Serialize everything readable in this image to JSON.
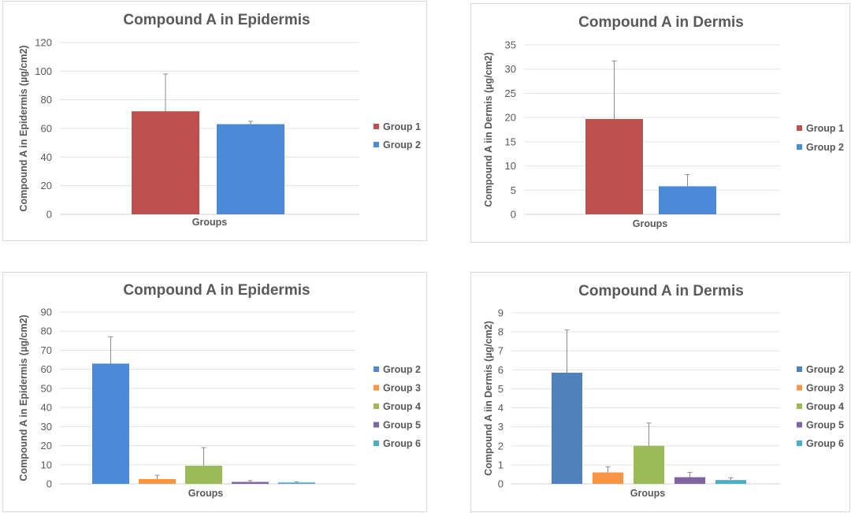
{
  "chart_data": [
    {
      "type": "bar",
      "title": "Compound A in Epidermis",
      "xlabel": "Groups",
      "ylabel": "Compound A  in Epidermis (µg/cm2)",
      "ylim": [
        0,
        120
      ],
      "yticks": [
        0,
        20,
        40,
        60,
        80,
        100,
        120
      ],
      "legend_position": "right",
      "series": [
        {
          "name": "Group 1",
          "value": 72,
          "error": 26,
          "color": "#c0504d"
        },
        {
          "name": "Group 2",
          "value": 63,
          "error": 2,
          "color": "#4a8ad8"
        }
      ]
    },
    {
      "type": "bar",
      "title": "Compound A in Dermis",
      "xlabel": "Groups",
      "ylabel": "Compound A  iin Dermis (µg/cm2)",
      "ylim": [
        0,
        35
      ],
      "yticks": [
        0,
        5,
        10,
        15,
        20,
        25,
        30,
        35
      ],
      "legend_position": "right",
      "series": [
        {
          "name": "Group 1",
          "value": 19.7,
          "error": 12,
          "color": "#c0504d"
        },
        {
          "name": "Group 2",
          "value": 5.8,
          "error": 2.4,
          "color": "#4a8ad8"
        }
      ]
    },
    {
      "type": "bar",
      "title": "Compound A in Epidermis",
      "xlabel": "Groups",
      "ylabel": "Compound A  in Epidermis (µg/cm2)",
      "ylim": [
        0,
        90
      ],
      "yticks": [
        0,
        10,
        20,
        30,
        40,
        50,
        60,
        70,
        80,
        90
      ],
      "legend_position": "right",
      "series": [
        {
          "name": "Group 2",
          "value": 63,
          "error": 14,
          "color": "#4a8ad8"
        },
        {
          "name": "Group 3",
          "value": 2.5,
          "error": 2,
          "color": "#f79646"
        },
        {
          "name": "Group 4",
          "value": 9.5,
          "error": 9.5,
          "color": "#9bbb59"
        },
        {
          "name": "Group 5",
          "value": 1,
          "error": 0.7,
          "color": "#8064a2"
        },
        {
          "name": "Group 6",
          "value": 0.7,
          "error": 0.4,
          "color": "#4bacc6"
        }
      ]
    },
    {
      "type": "bar",
      "title": "Compound A in Dermis",
      "xlabel": "Groups",
      "ylabel": "Compound A  iin Dermis (µg/cm2)",
      "ylim": [
        0,
        9
      ],
      "yticks": [
        0,
        1,
        2,
        3,
        4,
        5,
        6,
        7,
        8,
        9
      ],
      "legend_position": "right",
      "series": [
        {
          "name": "Group 2",
          "value": 5.85,
          "error": 2.25,
          "color": "#4f81bd"
        },
        {
          "name": "Group 3",
          "value": 0.6,
          "error": 0.3,
          "color": "#f79646"
        },
        {
          "name": "Group 4",
          "value": 2.0,
          "error": 1.2,
          "color": "#9bbb59"
        },
        {
          "name": "Group 5",
          "value": 0.35,
          "error": 0.25,
          "color": "#8064a2"
        },
        {
          "name": "Group 6",
          "value": 0.2,
          "error": 0.12,
          "color": "#4bacc6"
        }
      ]
    }
  ]
}
